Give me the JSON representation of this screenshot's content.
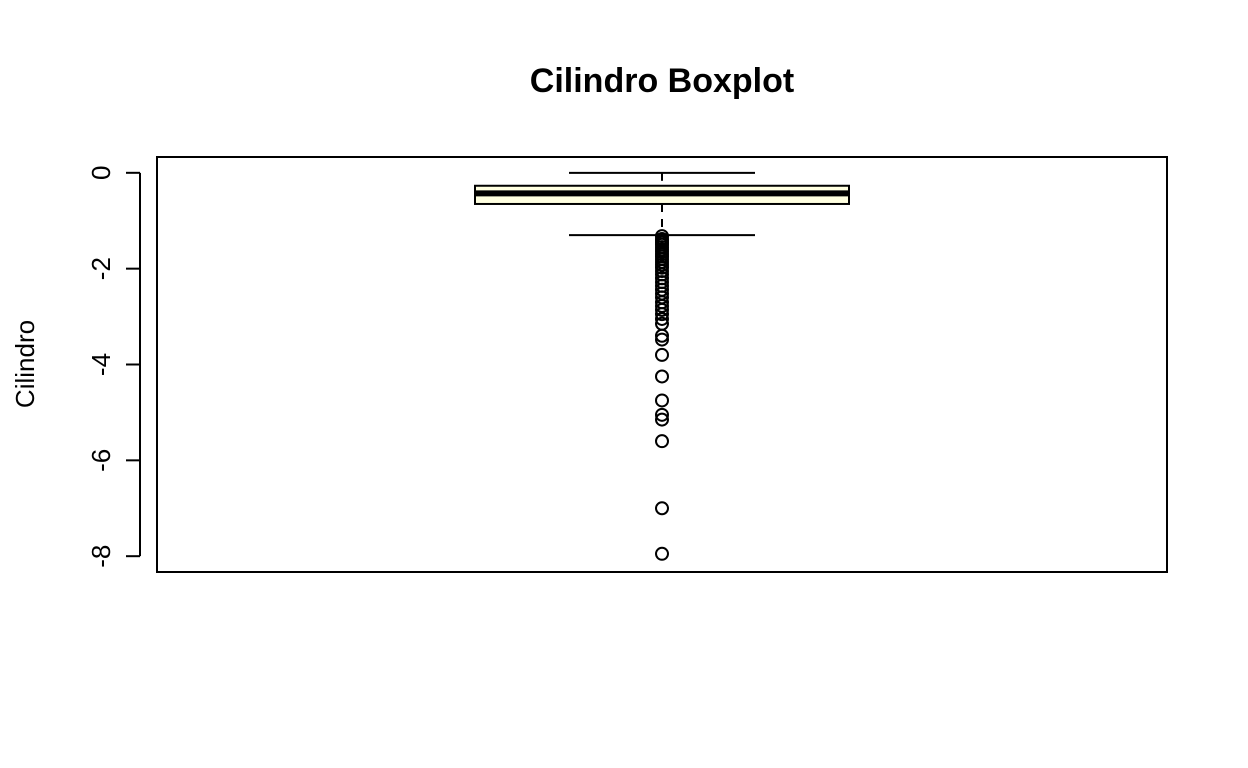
{
  "chart_data": {
    "type": "boxplot",
    "title": "Cilindro Boxplot",
    "xlabel": "",
    "ylabel": "Cilindro",
    "ylim": [
      -8.33,
      0.33
    ],
    "y_ticks": [
      0,
      -2,
      -4,
      -6,
      -8
    ],
    "y_tick_labels": [
      "0",
      "-2",
      "-4",
      "-6",
      "-8"
    ],
    "grid": false,
    "box": {
      "whisker_high": 0.0,
      "q3": -0.27,
      "median": -0.43,
      "q1": -0.65,
      "whisker_low": -1.3
    },
    "outliers": [
      -1.32,
      -1.38,
      -1.42,
      -1.46,
      -1.5,
      -1.55,
      -1.6,
      -1.65,
      -1.7,
      -1.75,
      -1.8,
      -1.86,
      -1.92,
      -1.98,
      -2.05,
      -2.12,
      -2.2,
      -2.28,
      -2.36,
      -2.44,
      -2.52,
      -2.6,
      -2.7,
      -2.78,
      -2.86,
      -2.95,
      -3.05,
      -3.15,
      -3.4,
      -3.48,
      -3.8,
      -4.25,
      -4.75,
      -5.05,
      -5.15,
      -5.6,
      -7.0,
      -7.95
    ],
    "colors": {
      "box_fill": "#ffffe0",
      "stroke": "#000000"
    }
  }
}
